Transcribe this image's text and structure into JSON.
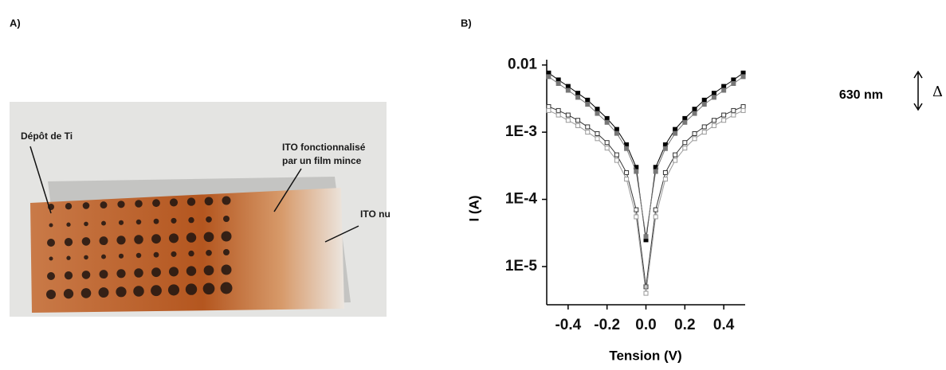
{
  "panel_a": {
    "label": "A)",
    "photo_labels": [
      "Dépôt de Ti",
      "ITO fonctionnalisé",
      "par un film mince",
      "ITO nu"
    ]
  },
  "panel_b": {
    "label": "B)"
  },
  "chart_data": {
    "type": "line",
    "x_label": "Tension (V)",
    "y_label": "I (A)",
    "annotations": [
      "630 nm",
      "Δ"
    ],
    "x": [
      -0.5,
      -0.45,
      -0.4,
      -0.35,
      -0.3,
      -0.25,
      -0.2,
      -0.15,
      -0.1,
      -0.05,
      0,
      0.05,
      0.1,
      0.15,
      0.2,
      0.25,
      0.3,
      0.35,
      0.4,
      0.45,
      0.5
    ],
    "series": [
      {
        "color": "#000000",
        "marker": "filled",
        "values": [
          0.0076,
          0.006,
          0.0048,
          0.0038,
          0.003,
          0.0022,
          0.0016,
          0.0011,
          0.00065,
          0.0003,
          2.5e-05,
          0.0003,
          0.00065,
          0.0011,
          0.0016,
          0.0022,
          0.003,
          0.0038,
          0.0048,
          0.006,
          0.0076
        ]
      },
      {
        "color": "#777777",
        "marker": "filled",
        "values": [
          0.0067,
          0.0053,
          0.0042,
          0.0033,
          0.0026,
          0.0019,
          0.0014,
          0.00096,
          0.00057,
          0.00026,
          2.8e-05,
          0.00026,
          0.00057,
          0.00096,
          0.0014,
          0.0019,
          0.0026,
          0.0033,
          0.0042,
          0.0053,
          0.0067
        ]
      },
      {
        "color": "#333333",
        "marker": "open",
        "values": [
          0.0024,
          0.0021,
          0.0018,
          0.0015,
          0.0012,
          0.00095,
          0.0007,
          0.00046,
          0.00025,
          7e-05,
          5e-06,
          7e-05,
          0.00025,
          0.00046,
          0.0007,
          0.00095,
          0.0012,
          0.0015,
          0.0018,
          0.0021,
          0.0024
        ]
      },
      {
        "color": "#999999",
        "marker": "open",
        "values": [
          0.0021,
          0.0018,
          0.0015,
          0.00125,
          0.001,
          0.0008,
          0.00058,
          0.00038,
          0.0002,
          5.5e-05,
          4e-06,
          5.5e-05,
          0.0002,
          0.00038,
          0.00058,
          0.0008,
          0.001,
          0.00125,
          0.0015,
          0.0018,
          0.0021
        ]
      }
    ],
    "xlim": [
      -0.51,
      0.51
    ],
    "xticks": [
      -0.4,
      -0.2,
      {
        "value": 0,
        "label": "0.0"
      },
      0.2,
      0.4
    ],
    "ylim": [
      2.7e-06,
      0.012
    ],
    "log_y": true,
    "yticks": [
      0.01,
      {
        "value": 0.001,
        "label": "1E-3"
      },
      {
        "value": 0.0001,
        "label": "1E-4"
      },
      {
        "value": 1e-05,
        "label": "1E-5"
      }
    ]
  }
}
